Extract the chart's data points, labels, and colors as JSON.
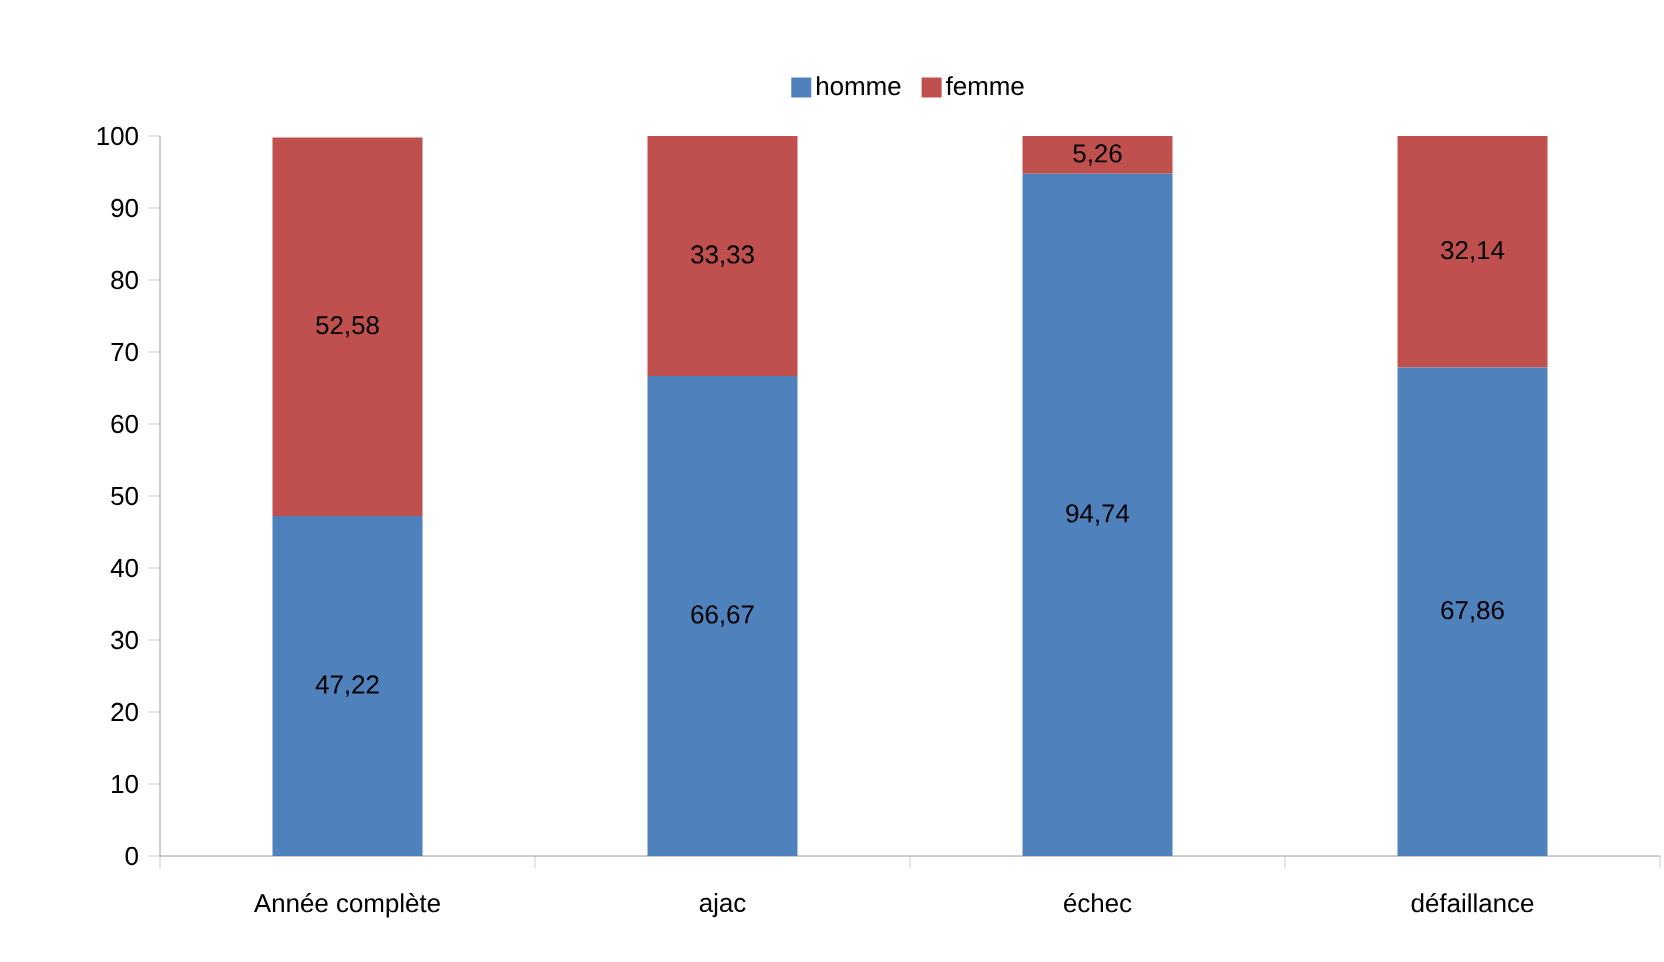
{
  "chart_data": {
    "type": "bar",
    "stacked": true,
    "categories": [
      "Année complète",
      "ajac",
      "échec",
      "défaillance"
    ],
    "series": [
      {
        "name": "homme",
        "color": "#4f81bd",
        "values": [
          47.22,
          66.67,
          94.74,
          67.86
        ],
        "value_labels": [
          "47,22",
          "66,67",
          "94,74",
          "67,86"
        ]
      },
      {
        "name": "femme",
        "color": "#c0504d",
        "values": [
          52.58,
          33.33,
          5.26,
          32.14
        ],
        "value_labels": [
          "52,58",
          "33,33",
          "5,26",
          "32,14"
        ]
      }
    ],
    "ylim": [
      0,
      100
    ],
    "yticks": [
      0,
      10,
      20,
      30,
      40,
      50,
      60,
      70,
      80,
      90,
      100
    ],
    "legend": "top",
    "grid": false
  }
}
